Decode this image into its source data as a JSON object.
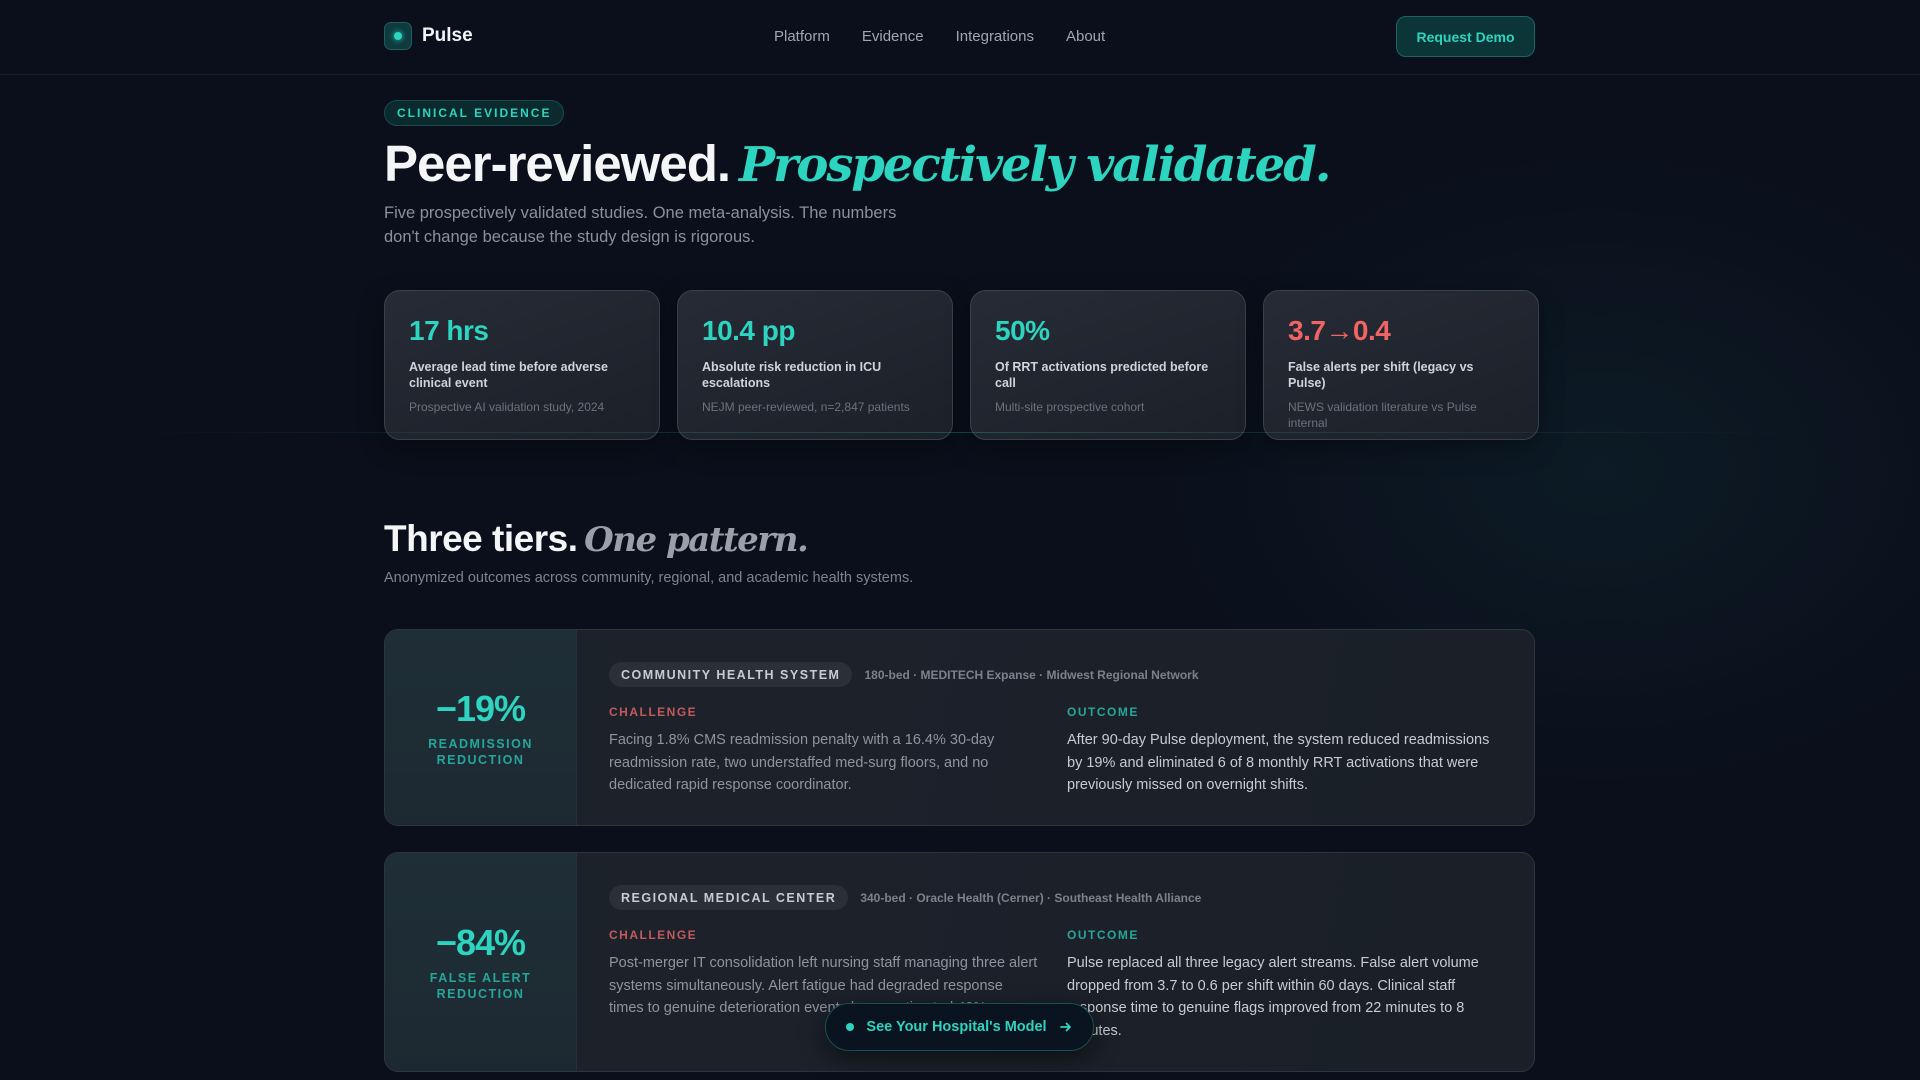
{
  "colors": {
    "accent": "#2dd4bf",
    "alert": "#f06464",
    "background": "#0a0f1b"
  },
  "nav": {
    "brand": "Pulse",
    "links": [
      "Platform",
      "Evidence",
      "Integrations",
      "About"
    ],
    "cta": "Request Demo"
  },
  "hero": {
    "badge": "CLINICAL EVIDENCE",
    "title_main": "Peer-reviewed.",
    "title_accent": "Prospectively validated.",
    "subtitle": "Five prospectively validated studies. One meta-analysis. The numbers don't change because the study design is rigorous."
  },
  "stats": [
    {
      "value": "17 hrs",
      "label": "Average lead time before adverse clinical event",
      "source": "Prospective AI validation study, 2024"
    },
    {
      "value": "10.4 pp",
      "label": "Absolute risk reduction in ICU escalations",
      "source": "NEJM peer-reviewed, n=2,847 patients"
    },
    {
      "value": "50%",
      "label": "Of RRT activations predicted before call",
      "source": "Multi-site prospective cohort"
    },
    {
      "value": "3.7→0.4",
      "label": "False alerts per shift (legacy vs Pulse)",
      "source": "NEWS validation literature vs Pulse internal"
    }
  ],
  "tiers": {
    "title_main": "Three tiers.",
    "title_accent": "One pattern.",
    "subtitle": "Anonymized outcomes across community, regional, and academic health systems."
  },
  "cases": [
    {
      "metric": "−19%",
      "metric_label": "READMISSION REDUCTION",
      "tag": "COMMUNITY HEALTH SYSTEM",
      "meta": "180-bed · MEDITECH Expanse · Midwest Regional Network",
      "challenge_label": "CHALLENGE",
      "challenge": "Facing 1.8% CMS readmission penalty with a 16.4% 30-day readmission rate, two understaffed med-surg floors, and no dedicated rapid response coordinator.",
      "outcome_label": "OUTCOME",
      "outcome": "After 90-day Pulse deployment, the system reduced readmissions by 19% and eliminated 6 of 8 monthly RRT activations that were previously missed on overnight shifts."
    },
    {
      "metric": "−84%",
      "metric_label": "FALSE ALERT REDUCTION",
      "tag": "REGIONAL MEDICAL CENTER",
      "meta": "340-bed · Oracle Health (Cerner) · Southeast Health Alliance",
      "challenge_label": "CHALLENGE",
      "challenge": "Post-merger IT consolidation left nursing staff managing three alert systems simultaneously. Alert fatigue had degraded response times to genuine deterioration events by an estimated 40%.",
      "outcome_label": "OUTCOME",
      "outcome": "Pulse replaced all three legacy alert streams. False alert volume dropped from 3.7 to 0.6 per shift within 60 days. Clinical staff response time to genuine flags improved from 22 minutes to 8 minutes."
    }
  ],
  "floating_cta": {
    "label": "See Your Hospital's Model",
    "icon": "arrow-right-icon"
  }
}
